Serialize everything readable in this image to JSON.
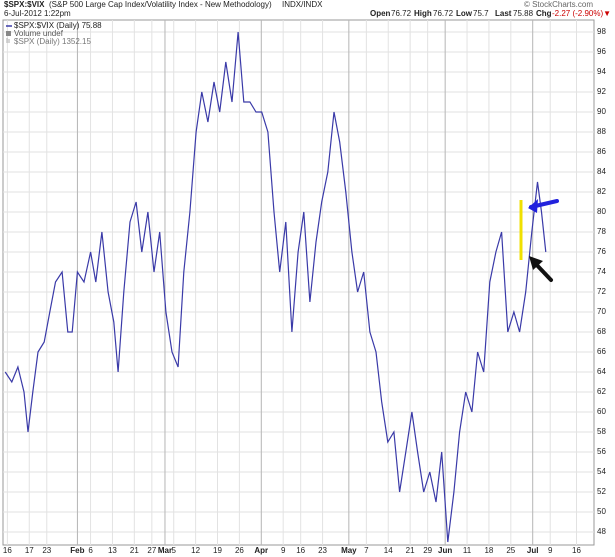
{
  "chart_data": {
    "type": "line",
    "header": {
      "symbol": "$SPX:$VIX",
      "description": "(S&P 500 Large Cap Index/Volatility Index - New Methodology)",
      "exchange": "INDX/INDX",
      "date": "6-Jul-2012 1:22pm",
      "open_label": "Open",
      "open": 76.72,
      "high_label": "High",
      "high": 76.72,
      "low_label": "Low",
      "low": 75.7,
      "last_label": "Last",
      "last": 75.88,
      "chg_label": "Chg",
      "chg": "-2.27 (-2.90%)▼",
      "credit": "© StockCharts.com"
    },
    "legend": [
      "$SPX:$VIX (Daily) 75.88",
      "Volume undef",
      "$SPX (Daily) 1352.15"
    ],
    "x": [
      0.5,
      2,
      3.4,
      4.8,
      5.7,
      6.8,
      8,
      9.4,
      10.7,
      12,
      13.5,
      14.8,
      15.8,
      17,
      18.5,
      20,
      21.2,
      22.6,
      24,
      25.3,
      26.3,
      27.6,
      29,
      30.4,
      31.7,
      33.1,
      34.5,
      35.8,
      37.2,
      38.6,
      40,
      41.3,
      42.7,
      44.1,
      45.4,
      46.8,
      48.2,
      49.5,
      50.9,
      52.3,
      53.7,
      55,
      56.4,
      57.8,
      59.1,
      60.5,
      61.9,
      63.2,
      64.6,
      66,
      67.4,
      68.7,
      70.1,
      71.5,
      72.8,
      74.2,
      75.6,
      76.9,
      78.3,
      79.7,
      81,
      82.4,
      83.8,
      85.2,
      86.5,
      87.9,
      89.3,
      90.6,
      92,
      93.4,
      94.7,
      96.1,
      97.5,
      98.9,
      100.2,
      101.6,
      103,
      104.3,
      105.7,
      107.1,
      108.4,
      109.8,
      111.2,
      112.6,
      113.9,
      115.3,
      116.7,
      118,
      119.4,
      120.8,
      122.1,
      123,
      124
    ],
    "series": [
      {
        "name": "$SPX:$VIX (Daily) 75.88",
        "color": "#3a3aa8",
        "values": [
          64,
          63,
          64.5,
          62,
          58,
          62,
          66,
          67,
          70,
          73,
          74,
          68,
          68,
          74,
          73,
          76,
          73,
          78,
          72,
          69,
          64,
          72,
          79,
          81,
          76,
          80,
          74,
          78,
          70,
          66,
          64.5,
          74,
          80,
          88,
          92,
          89,
          93,
          90,
          95,
          91,
          98,
          91,
          91,
          90,
          90,
          88,
          80,
          74,
          79,
          68,
          76,
          80,
          71,
          77,
          81,
          84,
          90,
          87,
          82,
          76,
          72,
          74,
          68,
          66,
          61,
          57,
          58,
          52,
          56,
          60,
          56,
          52,
          54,
          51,
          56,
          47,
          52,
          58,
          62,
          60,
          66,
          64,
          73,
          76,
          78,
          68,
          70,
          68,
          72,
          78,
          83,
          80,
          76
        ]
      }
    ],
    "xlim": [
      0,
      135
    ],
    "ylim": [
      46.7,
      99.2
    ],
    "yticks": [
      48,
      50,
      52,
      54,
      56,
      58,
      60,
      62,
      64,
      66,
      68,
      70,
      72,
      74,
      76,
      78,
      80,
      82,
      84,
      86,
      88,
      90,
      92,
      94,
      96,
      98
    ],
    "xticks": [
      {
        "value": 1,
        "label": "16"
      },
      {
        "value": 6,
        "label": "17"
      },
      {
        "value": 10,
        "label": "23"
      },
      {
        "value": 17,
        "label": "Feb"
      },
      {
        "value": 20,
        "label": "6"
      },
      {
        "value": 25,
        "label": "13"
      },
      {
        "value": 30,
        "label": "21"
      },
      {
        "value": 34,
        "label": "27"
      },
      {
        "value": 37,
        "label": "Mar"
      },
      {
        "value": 39,
        "label": "5"
      },
      {
        "value": 44,
        "label": "12"
      },
      {
        "value": 49,
        "label": "19"
      },
      {
        "value": 54,
        "label": "26"
      },
      {
        "value": 59,
        "label": "Apr"
      },
      {
        "value": 64,
        "label": "9"
      },
      {
        "value": 68,
        "label": "16"
      },
      {
        "value": 73,
        "label": "23"
      },
      {
        "value": 79,
        "label": "May"
      },
      {
        "value": 83,
        "label": "7"
      },
      {
        "value": 88,
        "label": "14"
      },
      {
        "value": 93,
        "label": "21"
      },
      {
        "value": 97,
        "label": "29"
      },
      {
        "value": 101,
        "label": "Jun"
      },
      {
        "value": 106,
        "label": "11"
      },
      {
        "value": 111,
        "label": "18"
      },
      {
        "value": 116,
        "label": "25"
      },
      {
        "value": 121,
        "label": "Jul"
      },
      {
        "value": 125,
        "label": "9"
      },
      {
        "value": 131,
        "label": "16"
      }
    ],
    "grid": true
  }
}
